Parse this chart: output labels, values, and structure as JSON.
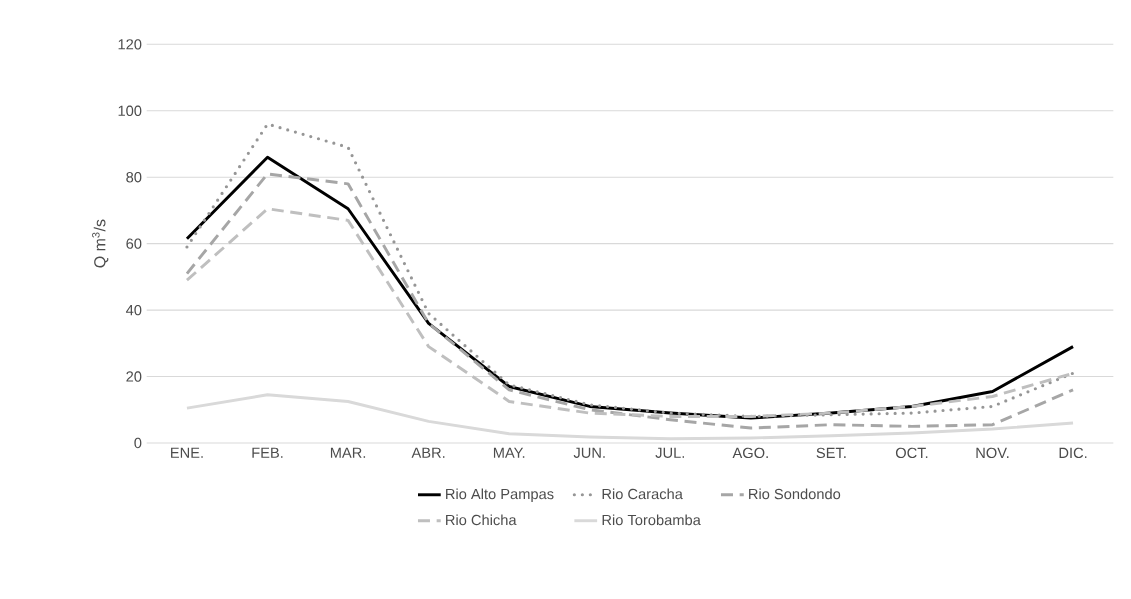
{
  "chart_data": {
    "type": "line",
    "ylabel": "Q m$^{3}$/s",
    "categories": [
      "ENE.",
      "FEB.",
      "MAR.",
      "ABR.",
      "MAY.",
      "JUN.",
      "JUL.",
      "AGO.",
      "SET.",
      "OCT.",
      "NOV.",
      "DIC."
    ],
    "series": [
      {
        "name": "Rio Alto Pampas",
        "color": "#000000",
        "line_style": "solid",
        "values": [
          61.5,
          86,
          70.5,
          36,
          17,
          11,
          9,
          7.5,
          9,
          11,
          15.5,
          29
        ]
      },
      {
        "name": "Rio Caracha",
        "color": "#969696",
        "line_style": "dotted",
        "values": [
          59,
          96,
          89,
          39,
          17.5,
          11.5,
          9,
          8,
          8.5,
          9,
          11,
          21
        ]
      },
      {
        "name": "Rio Sondondo",
        "color": "#a6a6a6",
        "line_style": "dashed",
        "values": [
          51,
          81,
          78,
          36,
          16,
          10,
          7,
          4.5,
          5.5,
          5,
          5.5,
          16
        ]
      },
      {
        "name": "Rio Chicha",
        "color": "#bfbfbf",
        "line_style": "dashed",
        "values": [
          49,
          70.5,
          67,
          29,
          12.5,
          9,
          8,
          8,
          9,
          11,
          14,
          21
        ]
      },
      {
        "name": "Rio Torobamba",
        "color": "#d9d9d9",
        "line_style": "solid",
        "values": [
          10.5,
          14.5,
          12.5,
          6.5,
          2.8,
          1.8,
          1.3,
          1.5,
          2.2,
          3,
          4.2,
          6
        ]
      }
    ],
    "ylim": [
      0,
      120
    ],
    "yticks": [
      0,
      20,
      40,
      60,
      80,
      100,
      120
    ],
    "grid": "y",
    "legend": "bottom",
    "marker": "none"
  }
}
